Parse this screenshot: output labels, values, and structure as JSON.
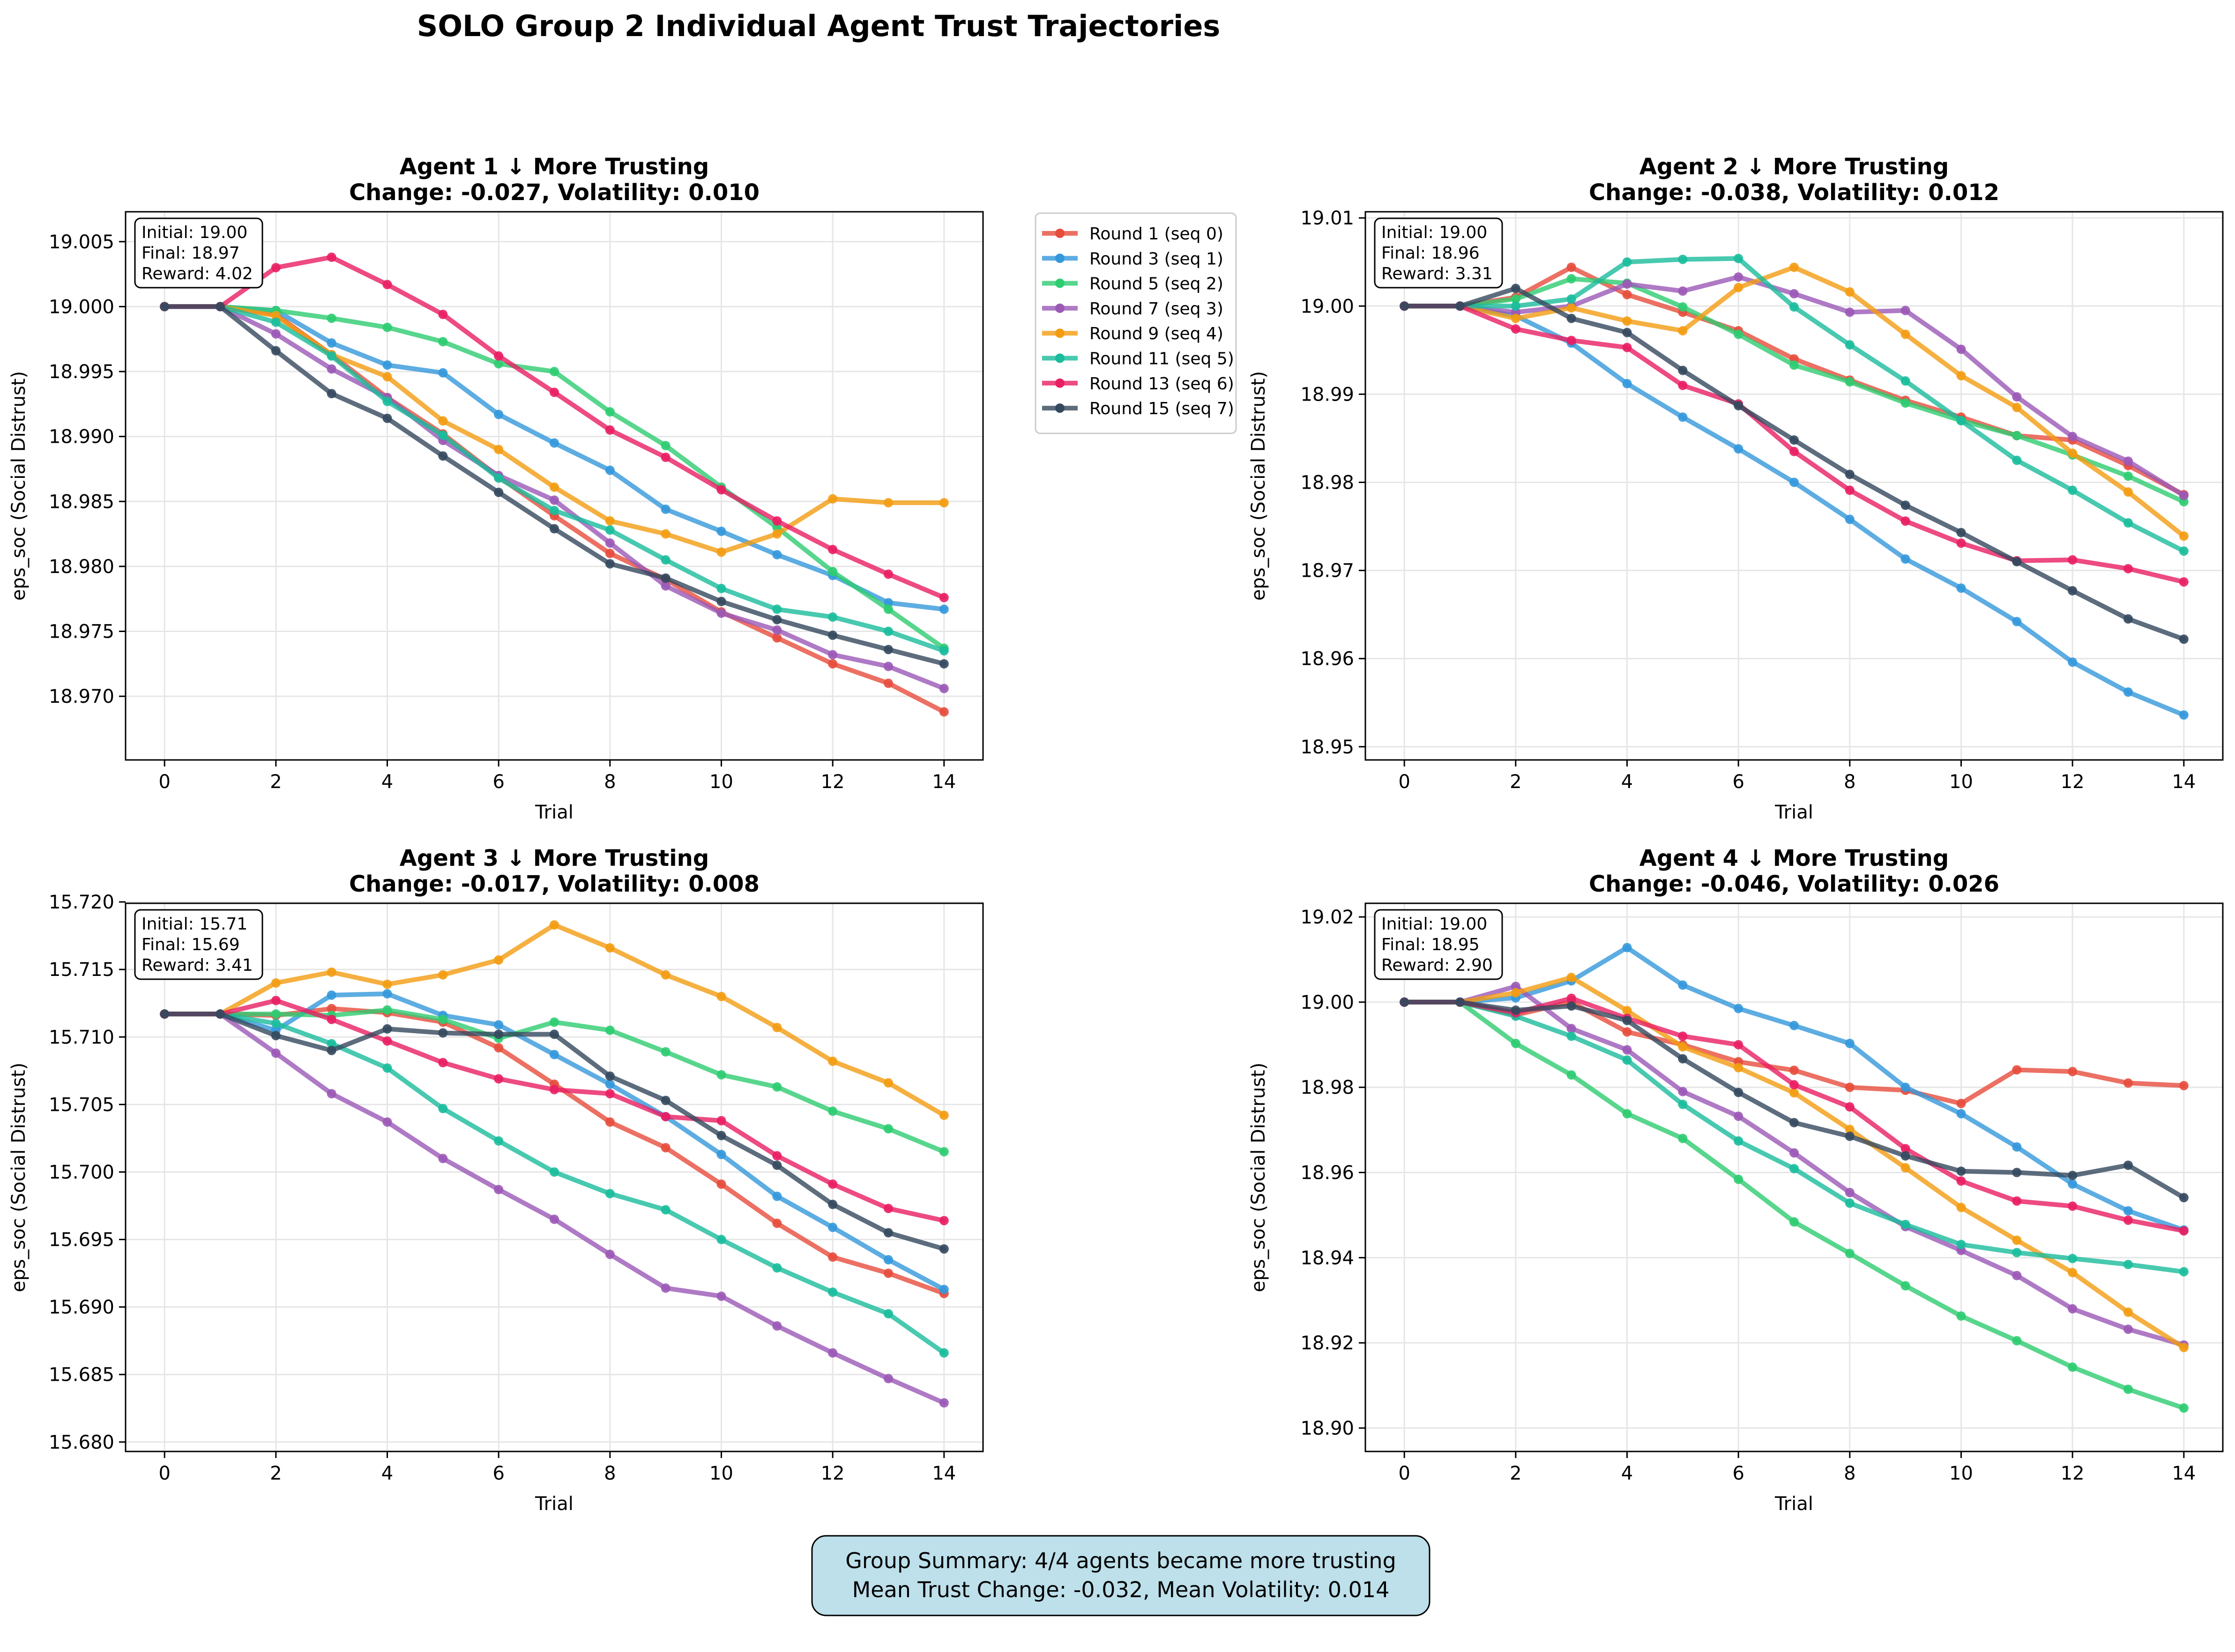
{
  "figure": {
    "title": "SOLO Group 2 Individual Agent Trust Trajectories",
    "summary_line1": "Group Summary: 4/4 agents became more trusting",
    "summary_line2": "Mean Trust Change: -0.032, Mean Volatility: 0.014"
  },
  "legend": {
    "placement": "right of Agent 1 panel",
    "entries": [
      "Round 1 (seq 0)",
      "Round 3 (seq 1)",
      "Round 5 (seq 2)",
      "Round 7 (seq 3)",
      "Round 9 (seq 4)",
      "Round 11 (seq 5)",
      "Round 13 (seq 6)",
      "Round 15 (seq 7)"
    ]
  },
  "colors": [
    "#e74c3c",
    "#3498db",
    "#2ecc71",
    "#9b59b6",
    "#f39c12",
    "#1abc9c",
    "#e91e63",
    "#34495e"
  ],
  "chart_data": [
    {
      "type": "line",
      "title_line1": "Agent 1 ↓ More Trusting",
      "title_line2": "Change: -0.027, Volatility: 0.010",
      "xlabel": "Trial",
      "ylabel": "eps_soc (Social Distrust)",
      "xlim": [
        -0.7,
        14.7
      ],
      "ylim": [
        18.9651,
        19.0073
      ],
      "xticks": [
        0,
        2,
        4,
        6,
        8,
        10,
        12,
        14
      ],
      "yticks": [
        18.97,
        18.975,
        18.98,
        18.985,
        18.99,
        18.995,
        19.0,
        19.005
      ],
      "ytick_labels": [
        "18.970",
        "18.975",
        "18.980",
        "18.985",
        "18.990",
        "18.995",
        "19.000",
        "19.005"
      ],
      "grid": true,
      "info_lines": [
        "Initial: 19.00",
        "Final: 18.97",
        "Reward: 4.02"
      ],
      "x": [
        0,
        1,
        2,
        3,
        4,
        5,
        6,
        7,
        8,
        9,
        10,
        11,
        12,
        13,
        14
      ],
      "series": [
        {
          "name": "Round 1 (seq 0)",
          "values": [
            19.0,
            19.0,
            18.9994,
            18.9963,
            18.993,
            18.9902,
            18.9869,
            18.9839,
            18.981,
            18.979,
            18.9765,
            18.9745,
            18.9725,
            18.971,
            18.9688
          ]
        },
        {
          "name": "Round 3 (seq 1)",
          "values": [
            19.0,
            19.0,
            18.9997,
            18.9972,
            18.9955,
            18.9949,
            18.9917,
            18.9895,
            18.9874,
            18.9844,
            18.9827,
            18.9809,
            18.9793,
            18.9772,
            18.9767
          ]
        },
        {
          "name": "Round 5 (seq 2)",
          "values": [
            19.0,
            19.0,
            18.9997,
            18.9991,
            18.9984,
            18.9973,
            18.9956,
            18.995,
            18.9919,
            18.9893,
            18.9861,
            18.983,
            18.9796,
            18.9767,
            18.9737
          ]
        },
        {
          "name": "Round 7 (seq 3)",
          "values": [
            19.0,
            19.0,
            18.9979,
            18.9952,
            18.993,
            18.9897,
            18.987,
            18.9851,
            18.9818,
            18.9785,
            18.9764,
            18.9751,
            18.9732,
            18.9723,
            18.9706
          ]
        },
        {
          "name": "Round 9 (seq 4)",
          "values": [
            19.0,
            19.0,
            18.9993,
            18.9963,
            18.9946,
            18.9912,
            18.989,
            18.9861,
            18.9835,
            18.9825,
            18.9811,
            18.9825,
            18.9852,
            18.9849,
            18.9849
          ]
        },
        {
          "name": "Round 11 (seq 5)",
          "values": [
            19.0,
            19.0,
            18.9988,
            18.9962,
            18.9927,
            18.9901,
            18.9868,
            18.9843,
            18.9828,
            18.9805,
            18.9783,
            18.9767,
            18.9761,
            18.975,
            18.9735
          ]
        },
        {
          "name": "Round 13 (seq 6)",
          "values": [
            19.0,
            19.0,
            19.003,
            19.0038,
            19.0017,
            18.9994,
            18.9962,
            18.9934,
            18.9905,
            18.9884,
            18.9859,
            18.9835,
            18.9813,
            18.9794,
            18.9776
          ]
        },
        {
          "name": "Round 15 (seq 7)",
          "values": [
            19.0,
            19.0,
            18.9966,
            18.9933,
            18.9914,
            18.9885,
            18.9857,
            18.9829,
            18.9802,
            18.9791,
            18.9773,
            18.9759,
            18.9747,
            18.9736,
            18.9725
          ]
        }
      ]
    },
    {
      "type": "line",
      "title_line1": "Agent 2 ↓ More Trusting",
      "title_line2": "Change: -0.038, Volatility: 0.012",
      "xlabel": "Trial",
      "ylabel": "eps_soc (Social Distrust)",
      "xlim": [
        -0.7,
        14.7
      ],
      "ylim": [
        18.9485,
        19.0107
      ],
      "xticks": [
        0,
        2,
        4,
        6,
        8,
        10,
        12,
        14
      ],
      "yticks": [
        18.95,
        18.96,
        18.97,
        18.98,
        18.99,
        19.0,
        19.01
      ],
      "ytick_labels": [
        "18.95",
        "18.96",
        "18.97",
        "18.98",
        "18.99",
        "19.00",
        "19.01"
      ],
      "grid": true,
      "info_lines": [
        "Initial: 19.00",
        "Final: 18.96",
        "Reward: 3.31"
      ],
      "x": [
        0,
        1,
        2,
        3,
        4,
        5,
        6,
        7,
        8,
        9,
        10,
        11,
        12,
        13,
        14
      ],
      "series": [
        {
          "name": "Round 1 (seq 0)",
          "values": [
            19.0,
            19.0,
            19.001,
            19.0044,
            19.0013,
            18.9993,
            18.9972,
            18.994,
            18.9916,
            18.9893,
            18.9874,
            18.9853,
            18.9848,
            18.9819,
            18.9786
          ]
        },
        {
          "name": "Round 3 (seq 1)",
          "values": [
            19.0,
            19.0,
            18.9989,
            18.9958,
            18.9912,
            18.9874,
            18.9838,
            18.98,
            18.9758,
            18.9713,
            18.968,
            18.9642,
            18.9596,
            18.9562,
            18.9536
          ]
        },
        {
          "name": "Round 5 (seq 2)",
          "values": [
            19.0,
            19.0,
            19.0008,
            19.0031,
            19.0026,
            18.9999,
            18.9968,
            18.9933,
            18.9914,
            18.989,
            18.987,
            18.9853,
            18.9831,
            18.9807,
            18.9778
          ]
        },
        {
          "name": "Round 7 (seq 3)",
          "values": [
            19.0,
            19.0,
            18.9993,
            19.0,
            19.0025,
            19.0017,
            19.0033,
            19.0014,
            18.9993,
            18.9995,
            18.9951,
            18.9897,
            18.9852,
            18.9824,
            18.9785
          ]
        },
        {
          "name": "Round 9 (seq 4)",
          "values": [
            19.0,
            19.0,
            18.9986,
            18.9998,
            18.9983,
            18.9972,
            19.0021,
            19.0044,
            19.0016,
            18.9968,
            18.9921,
            18.9885,
            18.9833,
            18.9789,
            18.9739
          ]
        },
        {
          "name": "Round 11 (seq 5)",
          "values": [
            19.0,
            19.0,
            19.0,
            19.0008,
            19.005,
            19.0053,
            19.0054,
            18.9999,
            18.9956,
            18.9915,
            18.987,
            18.9825,
            18.9791,
            18.9754,
            18.9722
          ]
        },
        {
          "name": "Round 13 (seq 6)",
          "values": [
            19.0,
            19.0,
            18.9974,
            18.9961,
            18.9953,
            18.991,
            18.9889,
            18.9835,
            18.9791,
            18.9756,
            18.9731,
            18.9711,
            18.9712,
            18.9702,
            18.9687
          ]
        },
        {
          "name": "Round 15 (seq 7)",
          "values": [
            19.0,
            19.0,
            19.002,
            18.9986,
            18.997,
            18.9927,
            18.9887,
            18.9848,
            18.9809,
            18.9774,
            18.9743,
            18.971,
            18.9677,
            18.9645,
            18.9622
          ]
        }
      ]
    },
    {
      "type": "line",
      "title_line1": "Agent 3 ↓ More Trusting",
      "title_line2": "Change: -0.017, Volatility: 0.008",
      "xlabel": "Trial",
      "ylabel": "eps_soc (Social Distrust)",
      "xlim": [
        -0.7,
        14.7
      ],
      "ylim": [
        15.6793,
        15.7199
      ],
      "xticks": [
        0,
        2,
        4,
        6,
        8,
        10,
        12,
        14
      ],
      "yticks": [
        15.68,
        15.685,
        15.69,
        15.695,
        15.7,
        15.705,
        15.71,
        15.715,
        15.72
      ],
      "ytick_labels": [
        "15.680",
        "15.685",
        "15.690",
        "15.695",
        "15.700",
        "15.705",
        "15.710",
        "15.715",
        "15.720"
      ],
      "grid": true,
      "info_lines": [
        "Initial: 15.71",
        "Final: 15.69",
        "Reward: 3.41"
      ],
      "x": [
        0,
        1,
        2,
        3,
        4,
        5,
        6,
        7,
        8,
        9,
        10,
        11,
        12,
        13,
        14
      ],
      "series": [
        {
          "name": "Round 1 (seq 0)",
          "values": [
            15.7117,
            15.7117,
            15.7116,
            15.7121,
            15.7118,
            15.7111,
            15.7092,
            15.7065,
            15.7037,
            15.7018,
            15.6991,
            15.6962,
            15.6937,
            15.6925,
            15.691
          ]
        },
        {
          "name": "Round 3 (seq 1)",
          "values": [
            15.7117,
            15.7117,
            15.7105,
            15.7131,
            15.7132,
            15.7116,
            15.7109,
            15.7087,
            15.7065,
            15.7041,
            15.7013,
            15.6982,
            15.6959,
            15.6935,
            15.6913
          ]
        },
        {
          "name": "Round 5 (seq 2)",
          "values": [
            15.7117,
            15.7117,
            15.7117,
            15.7116,
            15.712,
            15.7113,
            15.7099,
            15.7111,
            15.7105,
            15.7089,
            15.7072,
            15.7063,
            15.7045,
            15.7032,
            15.7015
          ]
        },
        {
          "name": "Round 7 (seq 3)",
          "values": [
            15.7117,
            15.7117,
            15.7088,
            15.7058,
            15.7037,
            15.701,
            15.6987,
            15.6965,
            15.6939,
            15.6914,
            15.6908,
            15.6886,
            15.6866,
            15.6847,
            15.6829
          ]
        },
        {
          "name": "Round 9 (seq 4)",
          "values": [
            15.7117,
            15.7117,
            15.714,
            15.7148,
            15.7139,
            15.7146,
            15.7157,
            15.7183,
            15.7166,
            15.7146,
            15.713,
            15.7107,
            15.7082,
            15.7066,
            15.7042
          ]
        },
        {
          "name": "Round 11 (seq 5)",
          "values": [
            15.7117,
            15.7117,
            15.711,
            15.7095,
            15.7077,
            15.7047,
            15.7023,
            15.7,
            15.6984,
            15.6972,
            15.695,
            15.6929,
            15.6911,
            15.6895,
            15.6866
          ]
        },
        {
          "name": "Round 13 (seq 6)",
          "values": [
            15.7117,
            15.7117,
            15.7127,
            15.7113,
            15.7097,
            15.7081,
            15.7069,
            15.7061,
            15.7058,
            15.7041,
            15.7038,
            15.7012,
            15.6991,
            15.6973,
            15.6964
          ]
        },
        {
          "name": "Round 15 (seq 7)",
          "values": [
            15.7117,
            15.7117,
            15.7101,
            15.709,
            15.7106,
            15.7103,
            15.7102,
            15.7102,
            15.7071,
            15.7053,
            15.7027,
            15.7005,
            15.6976,
            15.6955,
            15.6943
          ]
        }
      ]
    },
    {
      "type": "line",
      "title_line1": "Agent 4 ↓ More Trusting",
      "title_line2": "Change: -0.046, Volatility: 0.026",
      "xlabel": "Trial",
      "ylabel": "eps_soc (Social Distrust)",
      "xlim": [
        -0.7,
        14.7
      ],
      "ylim": [
        18.8945,
        19.0232
      ],
      "xticks": [
        0,
        2,
        4,
        6,
        8,
        10,
        12,
        14
      ],
      "yticks": [
        18.9,
        18.92,
        18.94,
        18.96,
        18.98,
        19.0,
        19.02
      ],
      "ytick_labels": [
        "18.90",
        "18.92",
        "18.94",
        "18.96",
        "18.98",
        "19.00",
        "19.02"
      ],
      "grid": true,
      "info_lines": [
        "Initial: 19.00",
        "Final: 18.95",
        "Reward: 2.90"
      ],
      "x": [
        0,
        1,
        2,
        3,
        4,
        5,
        6,
        7,
        8,
        9,
        10,
        11,
        12,
        13,
        14
      ],
      "series": [
        {
          "name": "Round 1 (seq 0)",
          "values": [
            19.0,
            19.0,
            18.997,
            19.0,
            18.993,
            18.99,
            18.986,
            18.984,
            18.98,
            18.9793,
            18.9762,
            18.9841,
            18.9837,
            18.981,
            18.9804
          ]
        },
        {
          "name": "Round 3 (seq 1)",
          "values": [
            19.0,
            19.0,
            19.001,
            19.005,
            19.0128,
            19.004,
            18.9985,
            18.9945,
            18.9903,
            18.98,
            18.9738,
            18.966,
            18.9573,
            18.951,
            18.9465
          ]
        },
        {
          "name": "Round 5 (seq 2)",
          "values": [
            19.0,
            19.0,
            18.9903,
            18.9829,
            18.9738,
            18.968,
            18.9584,
            18.9484,
            18.941,
            18.9334,
            18.9263,
            18.9205,
            18.9143,
            18.9091,
            18.9047
          ]
        },
        {
          "name": "Round 7 (seq 3)",
          "values": [
            19.0,
            19.0,
            19.0037,
            18.9938,
            18.9888,
            18.979,
            18.9732,
            18.9646,
            18.9553,
            18.9473,
            18.9417,
            18.9358,
            18.928,
            18.9232,
            18.9195
          ]
        },
        {
          "name": "Round 9 (seq 4)",
          "values": [
            19.0,
            19.0,
            19.0022,
            19.0058,
            18.998,
            18.9895,
            18.9846,
            18.9787,
            18.9701,
            18.9611,
            18.9518,
            18.9441,
            18.9365,
            18.9272,
            18.9189
          ]
        },
        {
          "name": "Round 11 (seq 5)",
          "values": [
            19.0,
            19.0,
            18.9967,
            18.992,
            18.9864,
            18.976,
            18.9674,
            18.9609,
            18.9528,
            18.9478,
            18.9431,
            18.9412,
            18.9398,
            18.9384,
            18.9367
          ]
        },
        {
          "name": "Round 13 (seq 6)",
          "values": [
            19.0,
            19.0,
            18.9975,
            19.0009,
            18.9962,
            18.992,
            18.99,
            18.9806,
            18.9754,
            18.9656,
            18.958,
            18.9533,
            18.9521,
            18.9488,
            18.9463
          ]
        },
        {
          "name": "Round 15 (seq 7)",
          "values": [
            19.0,
            19.0,
            18.9981,
            18.9991,
            18.9957,
            18.9867,
            18.9788,
            18.9717,
            18.9685,
            18.9639,
            18.9603,
            18.96,
            18.9593,
            18.9617,
            18.9541
          ]
        }
      ]
    }
  ]
}
